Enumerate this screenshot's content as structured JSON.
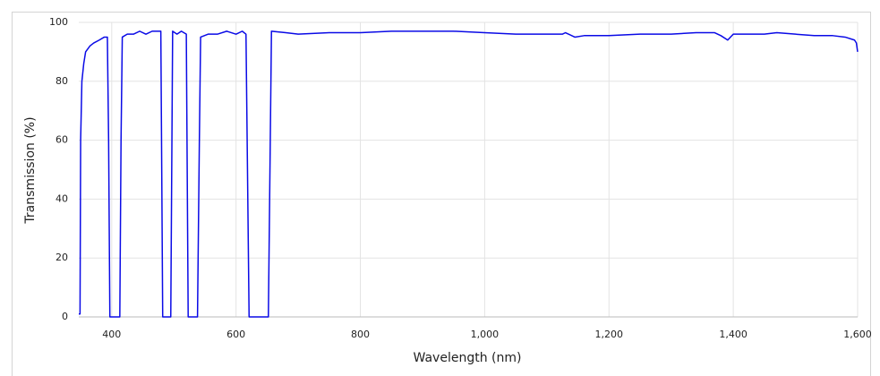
{
  "chart_data": {
    "type": "line",
    "xlabel": "Wavelength (nm)",
    "ylabel": "Transmission (%)",
    "xlim": [
      347,
      1600
    ],
    "ylim": [
      0,
      100
    ],
    "xticks": [
      400,
      600,
      800,
      {
        "value": 1000,
        "label": "1,000"
      },
      {
        "value": 1200,
        "label": "1,200"
      },
      {
        "value": 1400,
        "label": "1,400"
      },
      {
        "value": 1600,
        "label": "1,600"
      }
    ],
    "yticks": [
      0,
      20,
      40,
      60,
      80,
      100
    ],
    "grid": true,
    "series": [
      {
        "color": "#0a0ae6",
        "x": [
          347,
          349,
          350,
          352,
          355,
          358,
          365,
          371,
          380,
          388,
          393,
          395,
          397,
          413,
          415,
          417,
          425,
          435,
          445,
          455,
          465,
          475,
          479,
          482,
          495,
          498,
          505,
          512,
          520,
          523,
          538,
          541,
          543,
          555,
          570,
          585,
          600,
          610,
          616,
          621,
          652,
          657,
          680,
          700,
          750,
          800,
          850,
          900,
          950,
          1000,
          1050,
          1100,
          1125,
          1130,
          1145,
          1160,
          1200,
          1250,
          1300,
          1340,
          1370,
          1380,
          1391,
          1400,
          1420,
          1450,
          1470,
          1500,
          1530,
          1560,
          1580,
          1595,
          1598,
          1600
        ],
        "values": [
          1,
          1,
          60,
          80,
          86,
          90,
          92,
          93,
          94,
          95,
          95,
          60,
          0,
          0,
          60,
          95,
          96,
          96,
          97,
          96,
          97,
          97,
          97,
          0,
          0,
          97,
          96,
          97,
          96,
          0,
          0,
          60,
          95,
          96,
          96,
          97,
          96,
          97,
          96,
          0,
          0,
          97,
          96.5,
          96,
          96.5,
          96.5,
          97,
          97,
          97,
          96.5,
          96,
          96,
          96,
          96.5,
          95,
          95.5,
          95.5,
          96,
          96,
          96.5,
          96.5,
          95.5,
          94,
          96,
          96,
          96,
          96.5,
          96,
          95.5,
          95.5,
          95,
          94,
          93,
          90
        ]
      }
    ]
  }
}
